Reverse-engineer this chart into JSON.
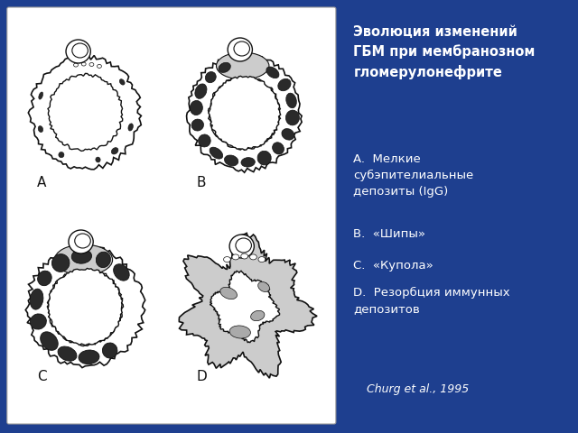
{
  "background_color": "#1e3f8f",
  "title_text": "Эволюция изменений\nГБМ при мембранозном\nгломерулонефрите",
  "label_A": "A.  Мелкие\nсубэпителиальные\nдепозиты (IgG)",
  "label_B": "B.  «Шипы»",
  "label_C": "C.  «Купола»",
  "label_D": "D.  Резорбция иммунных\nдепозитов",
  "citation": "Churg et al., 1995",
  "text_color": "#ffffff",
  "diagram_bg": "#ffffff",
  "black": "#111111",
  "dark_deposit": "#2a2a2a",
  "gray_deposit": "#aaaaaa",
  "light_gray": "#cccccc"
}
